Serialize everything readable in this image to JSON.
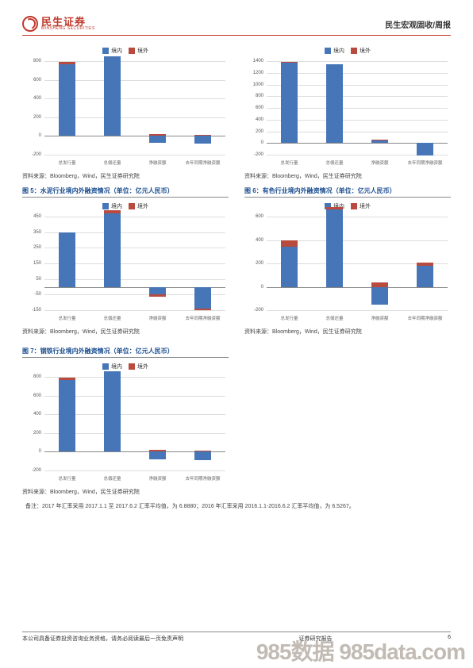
{
  "header": {
    "logo_cn": "民生证券",
    "logo_en": "MINSHENG SECURITIES",
    "right": "民生宏观固收/周报"
  },
  "colors": {
    "domestic": "#4676b8",
    "overseas": "#b84a3e",
    "grid": "#dddddd",
    "axis": "#888888",
    "title_blue": "#1a4d8f"
  },
  "legend": {
    "domestic": "境内",
    "overseas": "境外"
  },
  "x_categories": [
    "总发行量",
    "总偿还量",
    "净融资额",
    "去年同期净融资额"
  ],
  "source_text": "资料来源：Bloomberg，Wind，民生证券研究院",
  "charts": [
    {
      "id": "c1",
      "title": "",
      "ymin": -200,
      "ymax": 800,
      "ystep": 200,
      "series": [
        {
          "cat": 0,
          "domestic": 770,
          "overseas": 20
        },
        {
          "cat": 1,
          "domestic": 850,
          "overseas": 0
        },
        {
          "cat": 2,
          "domestic": -70,
          "overseas": 20
        },
        {
          "cat": 3,
          "domestic": -80,
          "overseas": 15
        }
      ]
    },
    {
      "id": "c2",
      "title": "",
      "ymin": -200,
      "ymax": 1400,
      "ystep": 200,
      "series": [
        {
          "cat": 0,
          "domestic": 1380,
          "overseas": 10
        },
        {
          "cat": 1,
          "domestic": 1340,
          "overseas": 0
        },
        {
          "cat": 2,
          "domestic": 50,
          "overseas": 10
        },
        {
          "cat": 3,
          "domestic": -210,
          "overseas": 0
        }
      ]
    },
    {
      "id": "c3",
      "title": "图 5：水泥行业境内外融资情况（单位：亿元人民币）",
      "ymin": -150,
      "ymax": 450,
      "ystep": 100,
      "ystart": -150,
      "series": [
        {
          "cat": 0,
          "domestic": 350,
          "overseas": 0
        },
        {
          "cat": 1,
          "domestic": 470,
          "overseas": 20
        },
        {
          "cat": 2,
          "domestic": -50,
          "overseas": -15
        },
        {
          "cat": 3,
          "domestic": -140,
          "overseas": -10
        }
      ]
    },
    {
      "id": "c4",
      "title": "图 6：有色行业境内外融资情况（单位：亿元人民币）",
      "ymin": -200,
      "ymax": 600,
      "ystep": 200,
      "series": [
        {
          "cat": 0,
          "domestic": 340,
          "overseas": 60
        },
        {
          "cat": 1,
          "domestic": 660,
          "overseas": 20
        },
        {
          "cat": 2,
          "domestic": -150,
          "overseas": 40
        },
        {
          "cat": 3,
          "domestic": 180,
          "overseas": 30
        }
      ]
    },
    {
      "id": "c5",
      "title": "图 7：钢铁行业境内外融资情况（单位：亿元人民币）",
      "ymin": -200,
      "ymax": 800,
      "ystep": 200,
      "series": [
        {
          "cat": 0,
          "domestic": 770,
          "overseas": 20
        },
        {
          "cat": 1,
          "domestic": 860,
          "overseas": 0
        },
        {
          "cat": 2,
          "domestic": -80,
          "overseas": 20
        },
        {
          "cat": 3,
          "domestic": -90,
          "overseas": 15
        }
      ]
    }
  ],
  "note": "备注：2017 年汇率采用 2017.1.1 至 2017.6.2 汇率平均值，为 6.8880；2016 年汇率采用 2016.1.1-2016.6.2 汇率平均值，为 6.5267。",
  "footer": {
    "left": "本公司具备证券投资咨询业务资格，请务必阅读最后一页免责声明",
    "mid": "证券研究报告",
    "page": "6"
  },
  "watermark": "985数据 985data.com"
}
